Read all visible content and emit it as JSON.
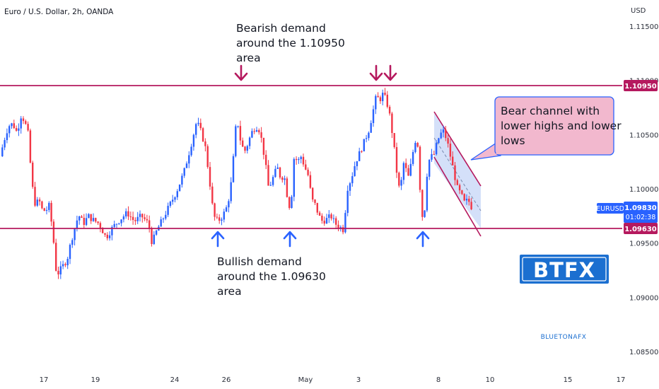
{
  "chart_data": {
    "type": "candlestick",
    "title": "Euro / U.S. Dollar, 2h, OANDA",
    "currency": "USD",
    "symbol": "EURUSD",
    "last_price": "1.09830",
    "countdown": "01:02:38",
    "y_ticks": [
      "1.11500",
      "1.11000",
      "1.10500",
      "1.10000",
      "1.09500",
      "1.09000",
      "1.08500"
    ],
    "x_ticks": [
      "17",
      "19",
      "24",
      "26",
      "May",
      "3",
      "8",
      "10",
      "15",
      "17"
    ],
    "ylim": [
      1.0835,
      1.1165
    ],
    "resistance": {
      "value": 1.1095,
      "label": "1.10950",
      "color": "#b5195e"
    },
    "support": {
      "value": 1.0963,
      "label": "1.09630",
      "color": "#b5195e"
    },
    "annotations": {
      "bearish": [
        "Bearish demand",
        "around the 1.10950",
        "area"
      ],
      "bullish": [
        "Bullish demand",
        "around the 1.09630",
        "area"
      ],
      "channel": [
        "Bear channel with",
        "lower highs and lower",
        "lows"
      ]
    },
    "logos": {
      "btfx": "BTFX",
      "bluetona": "BLUETONAFX"
    },
    "colors": {
      "up": "#2962ff",
      "down": "#f23645",
      "level": "#b5195e",
      "arrow_down": "#b5195e",
      "arrow_up": "#2962ff",
      "channel_fill": "#c5d6f7",
      "callout_fill": "#f2b8ce"
    },
    "waypoints": [
      [
        0,
        1.103
      ],
      [
        8,
        1.105
      ],
      [
        12,
        1.1058
      ],
      [
        18,
        1.106
      ],
      [
        24,
        1.1052
      ],
      [
        30,
        1.1068
      ],
      [
        35,
        1.1062
      ],
      [
        40,
        1.105
      ],
      [
        45,
        1.1005
      ],
      [
        50,
        1.0985
      ],
      [
        55,
        1.099
      ],
      [
        60,
        1.098
      ],
      [
        65,
        1.098
      ],
      [
        70,
        1.0985
      ],
      [
        76,
        1.095
      ],
      [
        80,
        1.092
      ],
      [
        85,
        1.0925
      ],
      [
        90,
        1.093
      ],
      [
        95,
        1.0935
      ],
      [
        100,
        1.095
      ],
      [
        104,
        1.096
      ],
      [
        108,
        1.097
      ],
      [
        112,
        1.0975
      ],
      [
        118,
        1.0968
      ],
      [
        125,
        1.0975
      ],
      [
        130,
        1.0972
      ],
      [
        140,
        1.0968
      ],
      [
        150,
        1.0955
      ],
      [
        160,
        1.0965
      ],
      [
        170,
        1.0972
      ],
      [
        180,
        1.0978
      ],
      [
        190,
        1.097
      ],
      [
        200,
        1.0975
      ],
      [
        210,
        1.0968
      ],
      [
        215,
        1.095
      ],
      [
        222,
        1.0962
      ],
      [
        230,
        1.0972
      ],
      [
        240,
        1.0985
      ],
      [
        250,
        1.0998
      ],
      [
        260,
        1.1015
      ],
      [
        270,
        1.104
      ],
      [
        278,
        1.1062
      ],
      [
        283,
        1.1055
      ],
      [
        290,
        1.104
      ],
      [
        296,
        1.101
      ],
      [
        302,
        1.0975
      ],
      [
        308,
        1.097
      ],
      [
        315,
        1.0975
      ],
      [
        322,
        1.0985
      ],
      [
        328,
        1.101
      ],
      [
        333,
        1.1055
      ],
      [
        337,
        1.106
      ],
      [
        341,
        1.104
      ],
      [
        347,
        1.1035
      ],
      [
        352,
        1.1045
      ],
      [
        358,
        1.1055
      ],
      [
        365,
        1.1058
      ],
      [
        370,
        1.1045
      ],
      [
        375,
        1.1025
      ],
      [
        380,
        1.1
      ],
      [
        386,
        1.101
      ],
      [
        392,
        1.102
      ],
      [
        397,
        1.101
      ],
      [
        402,
        1.1012
      ],
      [
        407,
        1.099
      ],
      [
        411,
        1.098
      ],
      [
        416,
        1.103
      ],
      [
        421,
        1.1025
      ],
      [
        426,
        1.103
      ],
      [
        431,
        1.102
      ],
      [
        436,
        1.1012
      ],
      [
        441,
        1.099
      ],
      [
        446,
        1.0985
      ],
      [
        451,
        1.0975
      ],
      [
        456,
        1.097
      ],
      [
        462,
        1.0972
      ],
      [
        468,
        1.0975
      ],
      [
        474,
        1.0968
      ],
      [
        480,
        1.0965
      ],
      [
        486,
        1.0962
      ],
      [
        491,
        1.1
      ],
      [
        497,
        1.101
      ],
      [
        503,
        1.1025
      ],
      [
        510,
        1.1035
      ],
      [
        516,
        1.1045
      ],
      [
        522,
        1.1055
      ],
      [
        527,
        1.107
      ],
      [
        532,
        1.1085
      ],
      [
        537,
        1.1082
      ],
      [
        542,
        1.1088
      ],
      [
        547,
        1.108
      ],
      [
        552,
        1.1065
      ],
      [
        557,
        1.104
      ],
      [
        562,
        1.101
      ],
      [
        566,
        1.0995
      ],
      [
        570,
        1.1025
      ],
      [
        574,
        1.1018
      ],
      [
        578,
        1.101
      ],
      [
        583,
        1.103
      ],
      [
        587,
        1.1045
      ],
      [
        591,
        1.104
      ],
      [
        596,
        1.0975
      ],
      [
        600,
        1.0975
      ],
      [
        603,
        1.101
      ],
      [
        608,
        1.103
      ],
      [
        613,
        1.103
      ],
      [
        618,
        1.1042
      ],
      [
        622,
        1.105
      ],
      [
        627,
        1.1053
      ],
      [
        632,
        1.1045
      ],
      [
        637,
        1.103
      ],
      [
        642,
        1.1015
      ],
      [
        647,
        1.1
      ],
      [
        652,
        1.0995
      ],
      [
        657,
        1.0987
      ],
      [
        662,
        1.099
      ],
      [
        667,
        1.0983
      ]
    ]
  }
}
